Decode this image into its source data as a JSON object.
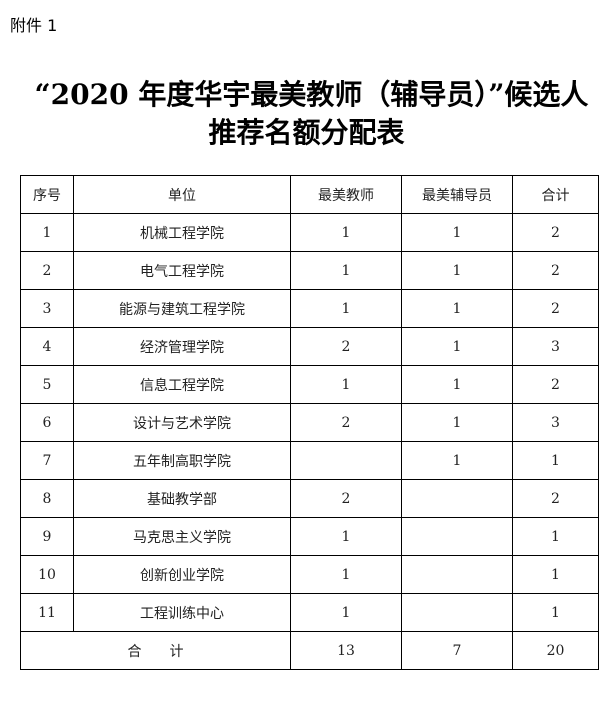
{
  "attachment_label": "附件 1",
  "title": {
    "line1": "“2020 年度华宇最美教师（辅导员）”候选人",
    "line2": "推荐名额分配表"
  },
  "table": {
    "headers": [
      "序号",
      "单位",
      "最美教师",
      "最美辅导员",
      "合计"
    ],
    "rows": [
      [
        "1",
        "机械工程学院",
        "1",
        "1",
        "2"
      ],
      [
        "2",
        "电气工程学院",
        "1",
        "1",
        "2"
      ],
      [
        "3",
        "能源与建筑工程学院",
        "1",
        "1",
        "2"
      ],
      [
        "4",
        "经济管理学院",
        "2",
        "1",
        "3"
      ],
      [
        "5",
        "信息工程学院",
        "1",
        "1",
        "2"
      ],
      [
        "6",
        "设计与艺术学院",
        "2",
        "1",
        "3"
      ],
      [
        "7",
        "五年制高职学院",
        "",
        "1",
        "1"
      ],
      [
        "8",
        "基础教学部",
        "2",
        "",
        "2"
      ],
      [
        "9",
        "马克思主义学院",
        "1",
        "",
        "1"
      ],
      [
        "10",
        "创新创业学院",
        "1",
        "",
        "1"
      ],
      [
        "11",
        "工程训练中心",
        "1",
        "",
        "1"
      ]
    ],
    "total": {
      "label": "合　　计",
      "teachers": "13",
      "counselors": "7",
      "sum": "20"
    }
  }
}
